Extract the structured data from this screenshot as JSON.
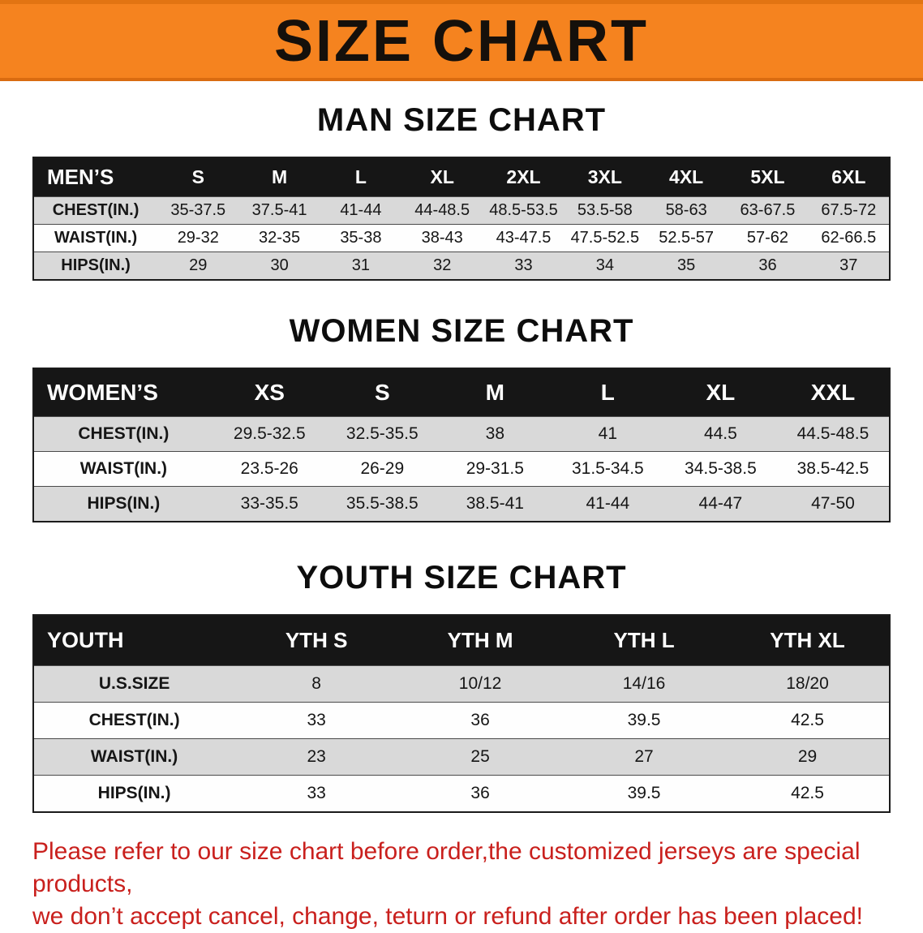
{
  "banner": {
    "title": "SIZE CHART",
    "bg_color": "#f5831f",
    "text_color": "#15100b"
  },
  "colors": {
    "table_header_bg": "#161616",
    "alt_row_bg": "#d9d9d9",
    "footer_text": "#c9201d"
  },
  "sections": [
    {
      "heading": "MAN SIZE CHART",
      "table": {
        "header": [
          "MEN’S",
          "S",
          "M",
          "L",
          "XL",
          "2XL",
          "3XL",
          "4XL",
          "5XL",
          "6XL"
        ],
        "rows": [
          [
            "CHEST(IN.)",
            "35-37.5",
            "37.5-41",
            "41-44",
            "44-48.5",
            "48.5-53.5",
            "53.5-58",
            "58-63",
            "63-67.5",
            "67.5-72"
          ],
          [
            "WAIST(IN.)",
            "29-32",
            "32-35",
            "35-38",
            "38-43",
            "43-47.5",
            "47.5-52.5",
            "52.5-57",
            "57-62",
            "62-66.5"
          ],
          [
            "HIPS(IN.)",
            "29",
            "30",
            "31",
            "32",
            "33",
            "34",
            "35",
            "36",
            "37"
          ]
        ]
      }
    },
    {
      "heading": "WOMEN SIZE CHART",
      "table": {
        "header": [
          "WOMEN’S",
          "XS",
          "S",
          "M",
          "L",
          "XL",
          "XXL"
        ],
        "rows": [
          [
            "CHEST(IN.)",
            "29.5-32.5",
            "32.5-35.5",
            "38",
            "41",
            "44.5",
            "44.5-48.5"
          ],
          [
            "WAIST(IN.)",
            "23.5-26",
            "26-29",
            "29-31.5",
            "31.5-34.5",
            "34.5-38.5",
            "38.5-42.5"
          ],
          [
            "HIPS(IN.)",
            "33-35.5",
            "35.5-38.5",
            "38.5-41",
            "41-44",
            "44-47",
            "47-50"
          ]
        ]
      }
    },
    {
      "heading": "YOUTH SIZE CHART",
      "table": {
        "header": [
          "YOUTH",
          "YTH S",
          "YTH M",
          "YTH L",
          "YTH XL"
        ],
        "rows": [
          [
            "U.S.SIZE",
            "8",
            "10/12",
            "14/16",
            "18/20"
          ],
          [
            "CHEST(IN.)",
            "33",
            "36",
            "39.5",
            "42.5"
          ],
          [
            "WAIST(IN.)",
            "23",
            "25",
            "27",
            "29"
          ],
          [
            "HIPS(IN.)",
            "33",
            "36",
            "39.5",
            "42.5"
          ]
        ]
      }
    }
  ],
  "footer": {
    "line1": "Please refer to our size chart before order,the customized jerseys are special products,",
    "line2": "we don’t accept cancel, change, teturn or refund after order has been placed!"
  }
}
